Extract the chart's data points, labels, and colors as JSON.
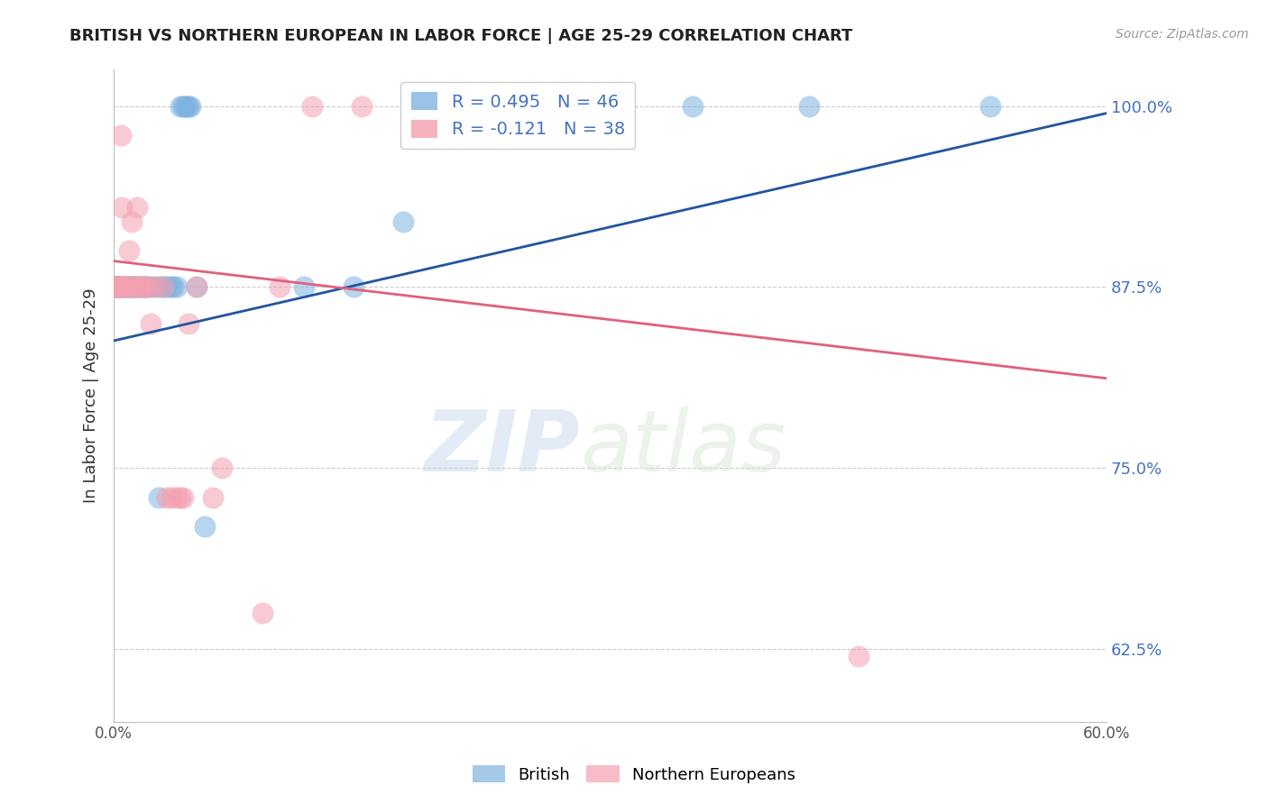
{
  "title": "BRITISH VS NORTHERN EUROPEAN IN LABOR FORCE | AGE 25-29 CORRELATION CHART",
  "source": "Source: ZipAtlas.com",
  "ylabel": "In Labor Force | Age 25-29",
  "xlim": [
    0.0,
    0.6
  ],
  "ylim": [
    0.575,
    1.025
  ],
  "yticks": [
    0.625,
    0.75,
    0.875,
    1.0
  ],
  "ytick_labels": [
    "62.5%",
    "75.0%",
    "87.5%",
    "100.0%"
  ],
  "xticks": [
    0.0,
    0.1,
    0.2,
    0.3,
    0.4,
    0.5,
    0.6
  ],
  "xtick_labels": [
    "0.0%",
    "",
    "",
    "",
    "",
    "",
    "60.0%"
  ],
  "british_R": 0.495,
  "british_N": 46,
  "northern_R": -0.121,
  "northern_N": 38,
  "british_color": "#7eb3e0",
  "northern_color": "#f4a0b0",
  "british_line_color": "#2255a0",
  "northern_line_color": "#e06080",
  "british_x": [
    0.001,
    0.001,
    0.002,
    0.002,
    0.003,
    0.003,
    0.004,
    0.005,
    0.006,
    0.007,
    0.008,
    0.009,
    0.01,
    0.011,
    0.012,
    0.013,
    0.014,
    0.015,
    0.016,
    0.017,
    0.018,
    0.019,
    0.02,
    0.022,
    0.025,
    0.027,
    0.028,
    0.03,
    0.032,
    0.034,
    0.036,
    0.038,
    0.04,
    0.042,
    0.043,
    0.044,
    0.045,
    0.046,
    0.05,
    0.055,
    0.115,
    0.145,
    0.175,
    0.35,
    0.42,
    0.53
  ],
  "british_y": [
    0.875,
    0.875,
    0.875,
    0.875,
    0.875,
    0.875,
    0.875,
    0.875,
    0.875,
    0.875,
    0.875,
    0.875,
    0.875,
    0.875,
    0.875,
    0.875,
    0.875,
    0.875,
    0.875,
    0.875,
    0.875,
    0.875,
    0.875,
    0.875,
    0.875,
    0.73,
    0.875,
    0.875,
    0.875,
    0.875,
    0.875,
    0.875,
    1.0,
    1.0,
    1.0,
    1.0,
    1.0,
    1.0,
    0.875,
    0.71,
    0.875,
    0.875,
    0.92,
    1.0,
    1.0,
    1.0
  ],
  "northern_x": [
    0.001,
    0.001,
    0.002,
    0.002,
    0.003,
    0.004,
    0.005,
    0.006,
    0.007,
    0.008,
    0.009,
    0.01,
    0.011,
    0.012,
    0.014,
    0.015,
    0.016,
    0.018,
    0.02,
    0.022,
    0.025,
    0.03,
    0.032,
    0.035,
    0.038,
    0.04,
    0.042,
    0.045,
    0.05,
    0.06,
    0.065,
    0.09,
    0.1,
    0.12,
    0.15,
    0.2,
    0.25,
    0.45
  ],
  "northern_y": [
    0.875,
    0.875,
    0.875,
    0.875,
    0.875,
    0.98,
    0.93,
    0.875,
    0.875,
    0.875,
    0.9,
    0.875,
    0.92,
    0.875,
    0.93,
    0.875,
    0.875,
    0.875,
    0.875,
    0.85,
    0.875,
    0.875,
    0.73,
    0.73,
    0.73,
    0.73,
    0.73,
    0.85,
    0.875,
    0.73,
    0.75,
    0.65,
    0.875,
    1.0,
    1.0,
    1.0,
    1.0,
    0.62
  ],
  "british_line_x": [
    0.0,
    0.6
  ],
  "british_line_y": [
    0.838,
    0.995
  ],
  "northern_line_x": [
    0.0,
    0.6
  ],
  "northern_line_y": [
    0.893,
    0.812
  ],
  "watermark_zip": "ZIP",
  "watermark_atlas": "atlas",
  "background_color": "#ffffff",
  "grid_color": "#cccccc",
  "legend_blue_text": "R = 0.495   N = 46",
  "legend_pink_text": "R = -0.121   N = 38",
  "bottom_legend_labels": [
    "British",
    "Northern Europeans"
  ]
}
